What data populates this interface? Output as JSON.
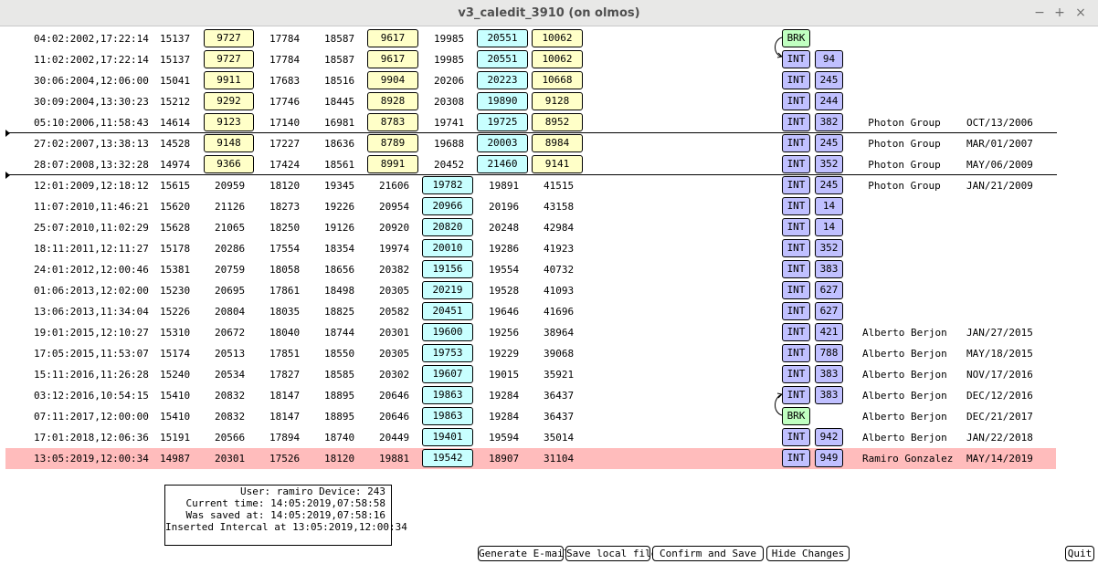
{
  "window": {
    "title": "v3_caledit_3910 (on olmos)",
    "minimize": "−",
    "maximize": "+",
    "close": "×"
  },
  "rows": [
    {
      "dt": "04:02:2002,17:22:14",
      "a": "15137",
      "b": "9727",
      "c": "17784",
      "d": "18587",
      "e": "9617",
      "f": "19985",
      "g": "20551",
      "h": "10062",
      "boxes": "A",
      "k": "BRK",
      "n": "",
      "who": "",
      "date": ""
    },
    {
      "dt": "11:02:2002,17:22:14",
      "a": "15137",
      "b": "9727",
      "c": "17784",
      "d": "18587",
      "e": "9617",
      "f": "19985",
      "g": "20551",
      "h": "10062",
      "boxes": "A",
      "k": "INT",
      "n": "94",
      "who": "",
      "date": ""
    },
    {
      "dt": "30:06:2004,12:06:00",
      "a": "15041",
      "b": "9911",
      "c": "17683",
      "d": "18516",
      "e": "9904",
      "f": "20206",
      "g": "20223",
      "h": "10668",
      "boxes": "A",
      "k": "INT",
      "n": "245",
      "who": "",
      "date": ""
    },
    {
      "dt": "30:09:2004,13:30:23",
      "a": "15212",
      "b": "9292",
      "c": "17746",
      "d": "18445",
      "e": "8928",
      "f": "20308",
      "g": "19890",
      "h": "9128",
      "boxes": "A",
      "k": "INT",
      "n": "244",
      "who": "",
      "date": ""
    },
    {
      "dt": "05:10:2006,11:58:43",
      "a": "14614",
      "b": "9123",
      "c": "17140",
      "d": "16981",
      "e": "8783",
      "f": "19741",
      "g": "19725",
      "h": "8952",
      "boxes": "A",
      "k": "INT",
      "n": "382",
      "who": "Photon Group",
      "date": "OCT/13/2006"
    },
    {
      "dt": "27:02:2007,13:38:13",
      "a": "14528",
      "b": "9148",
      "c": "17227",
      "d": "18636",
      "e": "8789",
      "f": "19688",
      "g": "20003",
      "h": "8984",
      "boxes": "A",
      "k": "INT",
      "n": "245",
      "who": "Photon Group",
      "date": "MAR/01/2007"
    },
    {
      "dt": "28:07:2008,13:32:28",
      "a": "14974",
      "b": "9366",
      "c": "17424",
      "d": "18561",
      "e": "8991",
      "f": "20452",
      "g": "21460",
      "h": "9141",
      "boxes": "A",
      "k": "INT",
      "n": "352",
      "who": "Photon Group",
      "date": "MAY/06/2009"
    },
    {
      "dt": "12:01:2009,12:18:12",
      "a": "15615",
      "b": "20959",
      "c": "18120",
      "d": "19345",
      "e": "21606",
      "f": "19782",
      "g": "19891",
      "h": "41515",
      "boxes": "B",
      "k": "INT",
      "n": "245",
      "who": "Photon Group",
      "date": "JAN/21/2009"
    },
    {
      "dt": "11:07:2010,11:46:21",
      "a": "15620",
      "b": "21126",
      "c": "18273",
      "d": "19226",
      "e": "20954",
      "f": "20966",
      "g": "20196",
      "h": "43158",
      "boxes": "B",
      "k": "INT",
      "n": "14",
      "who": "",
      "date": ""
    },
    {
      "dt": "25:07:2010,11:02:29",
      "a": "15628",
      "b": "21065",
      "c": "18250",
      "d": "19126",
      "e": "20920",
      "f": "20820",
      "g": "20248",
      "h": "42984",
      "boxes": "B",
      "k": "INT",
      "n": "14",
      "who": "",
      "date": ""
    },
    {
      "dt": "18:11:2011,12:11:27",
      "a": "15178",
      "b": "20286",
      "c": "17554",
      "d": "18354",
      "e": "19974",
      "f": "20010",
      "g": "19286",
      "h": "41923",
      "boxes": "B",
      "k": "INT",
      "n": "352",
      "who": "",
      "date": ""
    },
    {
      "dt": "24:01:2012,12:00:46",
      "a": "15381",
      "b": "20759",
      "c": "18058",
      "d": "18656",
      "e": "20382",
      "f": "19156",
      "g": "19554",
      "h": "40732",
      "boxes": "B",
      "k": "INT",
      "n": "383",
      "who": "",
      "date": ""
    },
    {
      "dt": "01:06:2013,12:02:00",
      "a": "15230",
      "b": "20695",
      "c": "17861",
      "d": "18498",
      "e": "20305",
      "f": "20219",
      "g": "19528",
      "h": "41093",
      "boxes": "B",
      "k": "INT",
      "n": "627",
      "who": "",
      "date": ""
    },
    {
      "dt": "13:06:2013,11:34:04",
      "a": "15226",
      "b": "20804",
      "c": "18035",
      "d": "18825",
      "e": "20582",
      "f": "20451",
      "g": "19646",
      "h": "41696",
      "boxes": "B",
      "k": "INT",
      "n": "627",
      "who": "",
      "date": ""
    },
    {
      "dt": "19:01:2015,12:10:27",
      "a": "15310",
      "b": "20672",
      "c": "18040",
      "d": "18744",
      "e": "20301",
      "f": "19600",
      "g": "19256",
      "h": "38964",
      "boxes": "B",
      "k": "INT",
      "n": "421",
      "who": "Alberto Berjon",
      "date": "JAN/27/2015"
    },
    {
      "dt": "17:05:2015,11:53:07",
      "a": "15174",
      "b": "20513",
      "c": "17851",
      "d": "18550",
      "e": "20305",
      "f": "19753",
      "g": "19229",
      "h": "39068",
      "boxes": "B",
      "k": "INT",
      "n": "788",
      "who": "Alberto Berjon",
      "date": "MAY/18/2015"
    },
    {
      "dt": "15:11:2016,11:26:28",
      "a": "15240",
      "b": "20534",
      "c": "17827",
      "d": "18585",
      "e": "20302",
      "f": "19607",
      "g": "19015",
      "h": "35921",
      "boxes": "B",
      "k": "INT",
      "n": "383",
      "who": "Alberto Berjon",
      "date": "NOV/17/2016"
    },
    {
      "dt": "03:12:2016,10:54:15",
      "a": "15410",
      "b": "20832",
      "c": "18147",
      "d": "18895",
      "e": "20646",
      "f": "19863",
      "g": "19284",
      "h": "36437",
      "boxes": "B",
      "k": "INT",
      "n": "383",
      "who": "Alberto Berjon",
      "date": "DEC/12/2016"
    },
    {
      "dt": "07:11:2017,12:00:00",
      "a": "15410",
      "b": "20832",
      "c": "18147",
      "d": "18895",
      "e": "20646",
      "f": "19863",
      "g": "19284",
      "h": "36437",
      "boxes": "B",
      "k": "BRK",
      "n": "",
      "who": "Alberto Berjon",
      "date": "DEC/21/2017"
    },
    {
      "dt": "17:01:2018,12:06:36",
      "a": "15191",
      "b": "20566",
      "c": "17894",
      "d": "18740",
      "e": "20449",
      "f": "19401",
      "g": "19594",
      "h": "35014",
      "boxes": "B",
      "k": "INT",
      "n": "942",
      "who": "Alberto Berjon",
      "date": "JAN/22/2018"
    },
    {
      "dt": "13:05:2019,12:00:34",
      "a": "14987",
      "b": "20301",
      "c": "17526",
      "d": "18120",
      "e": "19881",
      "f": "19542",
      "g": "18907",
      "h": "31104",
      "boxes": "B",
      "k": "INT",
      "n": "949",
      "who": "Ramiro Gonzalez",
      "date": "MAY/14/2019",
      "selected": true
    }
  ],
  "info": {
    "line1": "User: ramiro Device: 243",
    "line2": "Current time: 14:05:2019,07:58:58",
    "line3": "Was saved at: 14:05:2019,07:58:16",
    "line4": "Inserted Intercal at 13:05:2019,12:00:34"
  },
  "buttons": {
    "email": "Generate E-mail",
    "save_local": "Save local file",
    "confirm": "Confirm and Save",
    "hide": "Hide Changes",
    "quit": "Quit"
  },
  "colors": {
    "yellow_box": "#ffffc8",
    "cyan_box": "#c8ffff",
    "int_box": "#c0c0ff",
    "brk_box": "#c0ffc0",
    "selected_row": "#ffbcbc"
  }
}
